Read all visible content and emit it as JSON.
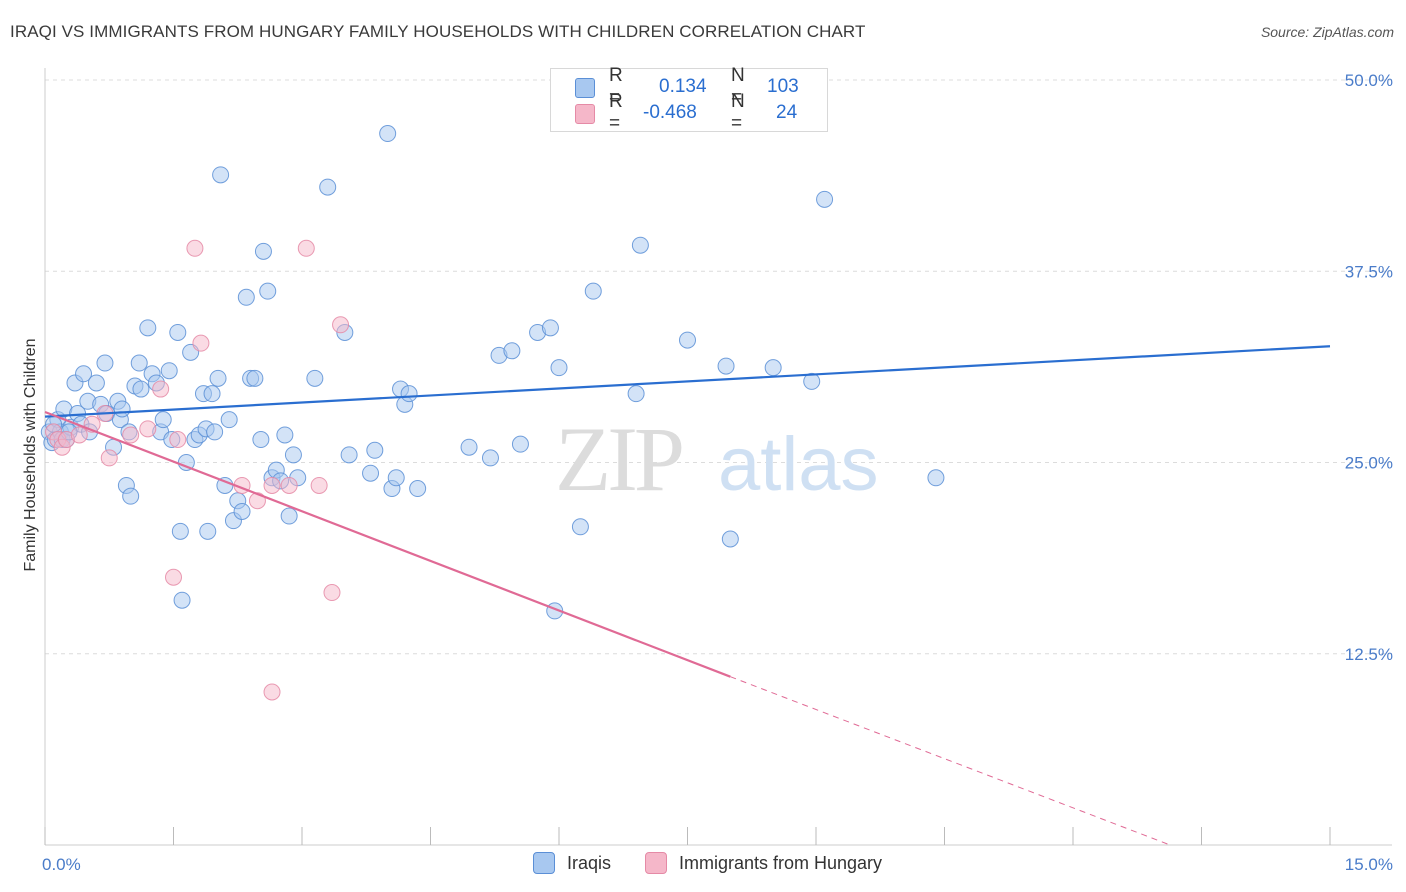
{
  "header": {
    "title": "IRAQI VS IMMIGRANTS FROM HUNGARY FAMILY HOUSEHOLDS WITH CHILDREN CORRELATION CHART",
    "source": "Source: ZipAtlas.com"
  },
  "watermark": {
    "zip": "ZIP",
    "atlas": "atlas"
  },
  "legend_top": {
    "rows": [
      {
        "r_label": "R =",
        "r_value": "0.134",
        "n_label": "N =",
        "n_value": "103",
        "color": "#a8c8f0"
      },
      {
        "r_label": "R =",
        "r_value": "-0.468",
        "n_label": "N =",
        "n_value": "24",
        "color": "#f5b7c9"
      }
    ]
  },
  "legend_bottom": {
    "items": [
      {
        "label": "Iraqis",
        "color": "#a8c8f0"
      },
      {
        "label": "Immigrants from Hungary",
        "color": "#f5b7c9"
      }
    ]
  },
  "colors": {
    "blue_fill": "#a8c8f0",
    "blue_stroke": "#5b8fd6",
    "blue_line": "#2a6ed0",
    "pink_fill": "#f5b7c9",
    "pink_stroke": "#e58aa6",
    "pink_line": "#e06a95",
    "grid": "#dcdcdc",
    "axis_text": "#4a7cc9"
  },
  "chart_data": {
    "type": "scatter",
    "title": "IRAQI VS IMMIGRANTS FROM HUNGARY FAMILY HOUSEHOLDS WITH CHILDREN CORRELATION CHART",
    "xlabel": "",
    "ylabel": "Family Households with Children",
    "xlim": [
      0,
      15
    ],
    "ylim": [
      0,
      50
    ],
    "x_tick_labels": [
      "0.0%",
      "15.0%"
    ],
    "y_ticks": [
      12.5,
      25.0,
      37.5,
      50.0
    ],
    "y_tick_labels": [
      "12.5%",
      "25.0%",
      "37.5%",
      "50.0%"
    ],
    "grid": "horizontal dashed",
    "series": [
      {
        "name": "Iraqis",
        "trend": {
          "x": [
            0,
            15
          ],
          "y": [
            28.0,
            32.6
          ]
        },
        "points": [
          [
            0.05,
            27.0
          ],
          [
            0.08,
            26.3
          ],
          [
            0.12,
            26.5
          ],
          [
            0.15,
            27.8
          ],
          [
            0.18,
            27.0
          ],
          [
            0.2,
            26.5
          ],
          [
            0.22,
            28.5
          ],
          [
            0.25,
            26.5
          ],
          [
            0.3,
            27.3
          ],
          [
            0.35,
            30.2
          ],
          [
            0.38,
            28.2
          ],
          [
            0.42,
            27.5
          ],
          [
            0.45,
            30.8
          ],
          [
            0.5,
            29.0
          ],
          [
            0.52,
            27.0
          ],
          [
            0.6,
            30.2
          ],
          [
            0.65,
            28.8
          ],
          [
            0.7,
            31.5
          ],
          [
            0.72,
            28.2
          ],
          [
            0.8,
            26.0
          ],
          [
            0.85,
            29.0
          ],
          [
            0.88,
            27.8
          ],
          [
            0.9,
            28.5
          ],
          [
            0.95,
            23.5
          ],
          [
            0.98,
            27.0
          ],
          [
            1.0,
            22.8
          ],
          [
            1.05,
            30.0
          ],
          [
            1.1,
            31.5
          ],
          [
            1.12,
            29.8
          ],
          [
            1.2,
            33.8
          ],
          [
            1.25,
            30.8
          ],
          [
            1.3,
            30.2
          ],
          [
            1.35,
            27.0
          ],
          [
            1.38,
            27.8
          ],
          [
            1.45,
            31.0
          ],
          [
            1.48,
            26.5
          ],
          [
            1.55,
            33.5
          ],
          [
            1.58,
            20.5
          ],
          [
            1.6,
            16.0
          ],
          [
            1.65,
            25.0
          ],
          [
            1.7,
            32.2
          ],
          [
            1.75,
            26.5
          ],
          [
            1.8,
            26.8
          ],
          [
            1.85,
            29.5
          ],
          [
            1.88,
            27.2
          ],
          [
            1.9,
            20.5
          ],
          [
            1.95,
            29.5
          ],
          [
            1.98,
            27.0
          ],
          [
            2.02,
            30.5
          ],
          [
            2.05,
            43.8
          ],
          [
            2.1,
            23.5
          ],
          [
            2.15,
            27.8
          ],
          [
            2.2,
            21.2
          ],
          [
            2.25,
            22.5
          ],
          [
            2.3,
            21.8
          ],
          [
            2.35,
            35.8
          ],
          [
            2.4,
            30.5
          ],
          [
            2.45,
            30.5
          ],
          [
            2.52,
            26.5
          ],
          [
            2.55,
            38.8
          ],
          [
            2.6,
            36.2
          ],
          [
            2.65,
            24.0
          ],
          [
            2.7,
            24.5
          ],
          [
            2.75,
            23.8
          ],
          [
            2.8,
            26.8
          ],
          [
            2.85,
            21.5
          ],
          [
            2.9,
            25.5
          ],
          [
            2.95,
            24.0
          ],
          [
            3.15,
            30.5
          ],
          [
            3.3,
            43.0
          ],
          [
            3.5,
            33.5
          ],
          [
            3.55,
            25.5
          ],
          [
            3.8,
            24.3
          ],
          [
            3.85,
            25.8
          ],
          [
            4.0,
            46.5
          ],
          [
            4.05,
            23.3
          ],
          [
            4.1,
            24.0
          ],
          [
            4.15,
            29.8
          ],
          [
            4.2,
            28.8
          ],
          [
            4.25,
            29.5
          ],
          [
            4.35,
            23.3
          ],
          [
            4.95,
            26.0
          ],
          [
            5.2,
            25.3
          ],
          [
            5.3,
            32.0
          ],
          [
            5.45,
            32.3
          ],
          [
            5.55,
            26.2
          ],
          [
            5.75,
            33.5
          ],
          [
            5.9,
            33.8
          ],
          [
            5.95,
            15.3
          ],
          [
            6.0,
            31.2
          ],
          [
            6.25,
            20.8
          ],
          [
            6.4,
            36.2
          ],
          [
            6.9,
            29.5
          ],
          [
            6.95,
            39.2
          ],
          [
            7.5,
            33.0
          ],
          [
            7.95,
            31.3
          ],
          [
            8.0,
            20.0
          ],
          [
            8.5,
            31.2
          ],
          [
            8.95,
            30.3
          ],
          [
            9.1,
            42.2
          ],
          [
            10.4,
            24.0
          ],
          [
            0.1,
            27.5
          ],
          [
            0.28,
            27.0
          ]
        ]
      },
      {
        "name": "Immigrants from Hungary",
        "trend": {
          "x": [
            0,
            8.0
          ],
          "y": [
            28.3,
            11.0
          ],
          "dashed_to": {
            "x": 15,
            "y": -4.0
          }
        },
        "points": [
          [
            0.1,
            27.0
          ],
          [
            0.15,
            26.5
          ],
          [
            0.2,
            26.0
          ],
          [
            0.25,
            26.5
          ],
          [
            0.4,
            26.8
          ],
          [
            0.55,
            27.5
          ],
          [
            0.7,
            28.2
          ],
          [
            0.75,
            25.3
          ],
          [
            1.0,
            26.8
          ],
          [
            1.2,
            27.2
          ],
          [
            1.35,
            29.8
          ],
          [
            1.5,
            17.5
          ],
          [
            1.55,
            26.5
          ],
          [
            1.75,
            39.0
          ],
          [
            1.82,
            32.8
          ],
          [
            2.3,
            23.5
          ],
          [
            2.48,
            22.5
          ],
          [
            2.65,
            23.5
          ],
          [
            2.65,
            10.0
          ],
          [
            2.85,
            23.5
          ],
          [
            3.05,
            39.0
          ],
          [
            3.2,
            23.5
          ],
          [
            3.35,
            16.5
          ],
          [
            3.45,
            34.0
          ]
        ]
      }
    ]
  }
}
